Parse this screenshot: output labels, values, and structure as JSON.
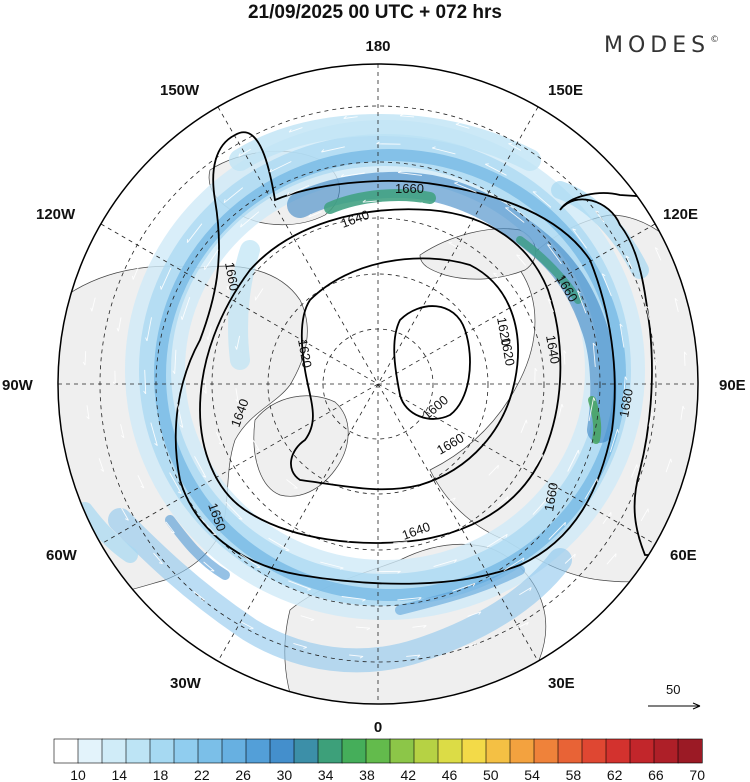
{
  "header": {
    "title": "21/09/2025  00 UTC  + 072 hrs",
    "brand": "MODES",
    "brand_mark": "©"
  },
  "map": {
    "projection": "north-polar-stereographic",
    "longitude_labels": {
      "top": "180",
      "upper_right": "150E",
      "right_upper": "120E",
      "right": "90E",
      "right_lower": "60E",
      "lower_right": "30E",
      "bottom": "0",
      "lower_left": "30W",
      "left_lower": "60W",
      "left": "90W",
      "left_upper": "120W",
      "upper_left": "150W"
    },
    "contour_labels": [
      "1660",
      "1640",
      "1660",
      "1620",
      "1620",
      "1600",
      "1660",
      "1640",
      "1620",
      "1680",
      "1640",
      "1660",
      "1650",
      "1640",
      "1660"
    ],
    "wind_reference": "50"
  },
  "colorbar": {
    "tick_labels": [
      "10",
      "14",
      "18",
      "22",
      "26",
      "30",
      "34",
      "38",
      "42",
      "46",
      "50",
      "54",
      "58",
      "62",
      "66",
      "70"
    ],
    "colors": [
      "#ffffff",
      "#e3f3fb",
      "#d0ecf8",
      "#bde4f5",
      "#a6d9f2",
      "#90cdef",
      "#7bbfe8",
      "#67b0e1",
      "#539fd8",
      "#448fcc",
      "#3c8fa8",
      "#3da07a",
      "#45ae5a",
      "#63bb4c",
      "#8cc648",
      "#b6d244",
      "#dcdc46",
      "#f3da48",
      "#f4c044",
      "#f3a23f",
      "#ef823a",
      "#e86336",
      "#df4732",
      "#d3322e",
      "#c2262b",
      "#ae1f28",
      "#9b1a25"
    ]
  }
}
